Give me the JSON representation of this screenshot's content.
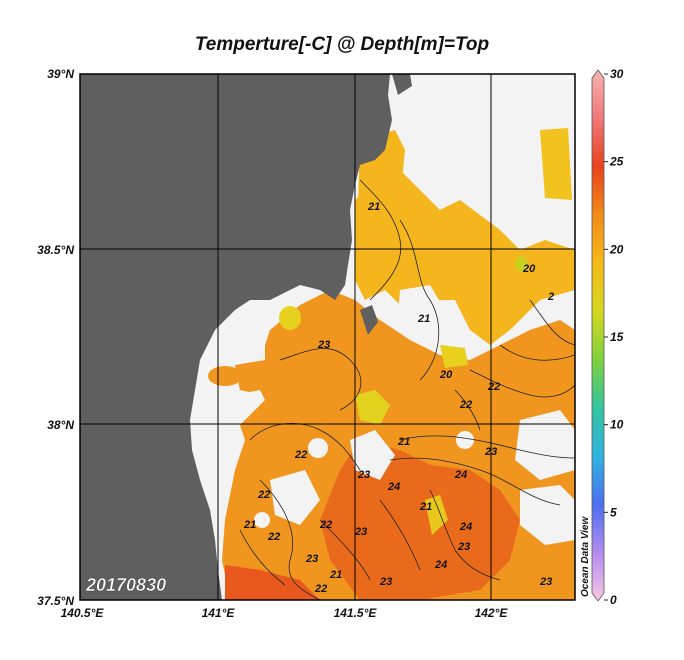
{
  "title": "Temperture[-C] @ Depth[m]=Top",
  "date_label": "20170830",
  "credit": "Ocean Data View",
  "axes": {
    "lat_labels": [
      "39°N",
      "38.5°N",
      "38°N",
      "37.5°N"
    ],
    "lon_labels": [
      "140.5°E",
      "141°E",
      "141.5°E",
      "142°E"
    ]
  },
  "colorbar": {
    "ticks": [
      "30",
      "25",
      "20",
      "15",
      "10",
      "5",
      "0"
    ],
    "stops": [
      "#f9c6e4",
      "#b48cf0",
      "#4b6ff0",
      "#2fb4e0",
      "#33c4a0",
      "#7ed23c",
      "#d6d820",
      "#f5b918",
      "#f28c18",
      "#e8421c",
      "#f07878",
      "#f8b4b4"
    ]
  },
  "contour_labels": [
    "21",
    "20",
    "2",
    "23",
    "21",
    "22",
    "20",
    "22",
    "21",
    "22",
    "22",
    "23",
    "24",
    "24",
    "23",
    "21",
    "23",
    "22",
    "23",
    "24",
    "21",
    "22",
    "23",
    "21",
    "22",
    "23",
    "24",
    "23"
  ],
  "colors": {
    "land": "#5f5f5f",
    "no_data": "#f3f3f3",
    "warm": "#f0961e",
    "hot": "#e8641c",
    "cool": "#f5bd14",
    "cooler": "#e6d81e"
  }
}
